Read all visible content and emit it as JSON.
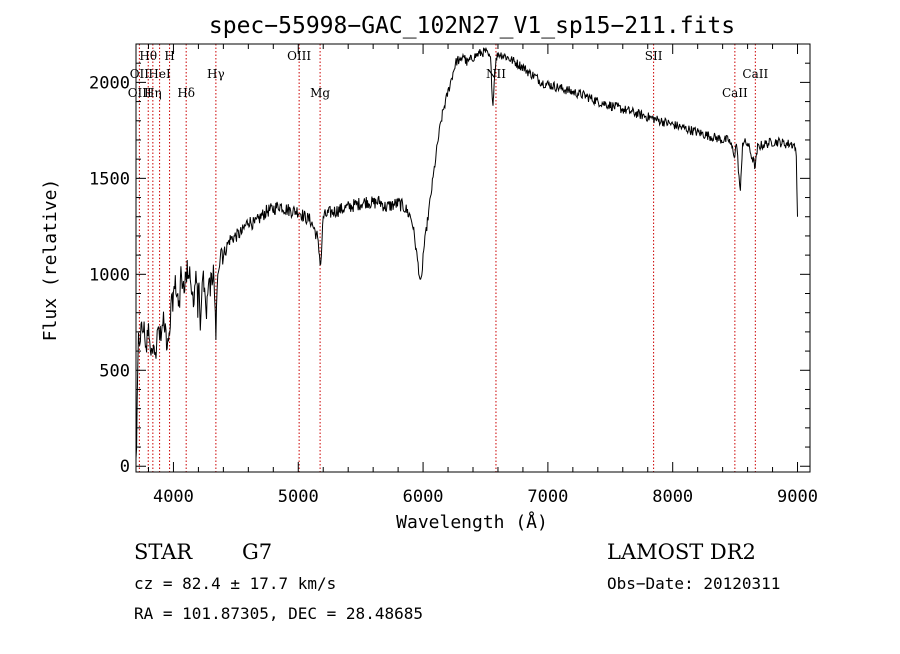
{
  "chart_data": {
    "type": "line",
    "title": "spec−55998−GAC_102N27_V1_sp15−211.fits",
    "xlabel": "Wavelength (Å)",
    "ylabel": "Flux (relative)",
    "xlim": [
      3700,
      9100
    ],
    "ylim": [
      -30,
      2200
    ],
    "xticks": [
      4000,
      5000,
      6000,
      7000,
      8000,
      9000
    ],
    "yticks": [
      0,
      500,
      1000,
      1500,
      2000
    ],
    "grid": false,
    "series": [
      {
        "color": "#000000",
        "x": [
          3700,
          3720,
          3740,
          3760,
          3780,
          3800,
          3820,
          3840,
          3860,
          3880,
          3900,
          3920,
          3940,
          3960,
          3980,
          4000,
          4020,
          4040,
          4060,
          4080,
          4100,
          4120,
          4140,
          4160,
          4180,
          4200,
          4220,
          4240,
          4260,
          4280,
          4300,
          4320,
          4340,
          4360,
          4380,
          4400,
          4450,
          4500,
          4550,
          4600,
          4650,
          4700,
          4750,
          4800,
          4850,
          4900,
          4950,
          5000,
          5050,
          5100,
          5150,
          5180,
          5200,
          5250,
          5300,
          5350,
          5400,
          5450,
          5500,
          5550,
          5600,
          5650,
          5700,
          5750,
          5800,
          5850,
          5900,
          5920,
          5950,
          5970,
          5980,
          5990,
          6000,
          6020,
          6040,
          6060,
          6080,
          6100,
          6120,
          6140,
          6160,
          6180,
          6200,
          6220,
          6240,
          6260,
          6280,
          6300,
          6320,
          6350,
          6400,
          6450,
          6500,
          6540,
          6560,
          6565,
          6580,
          6600,
          6650,
          6700,
          6750,
          6800,
          6850,
          6900,
          6950,
          7000,
          7050,
          7100,
          7150,
          7200,
          7300,
          7400,
          7500,
          7600,
          7700,
          7800,
          7900,
          8000,
          8100,
          8200,
          8300,
          8400,
          8450,
          8498,
          8510,
          8542,
          8560,
          8600,
          8662,
          8680,
          8700,
          8750,
          8800,
          8850,
          8900,
          8950,
          8980,
          8990,
          9000
        ],
        "y": [
          20,
          650,
          700,
          720,
          650,
          700,
          550,
          700,
          600,
          720,
          650,
          780,
          700,
          600,
          800,
          900,
          950,
          850,
          1000,
          950,
          980,
          1050,
          900,
          880,
          1000,
          920,
          850,
          950,
          800,
          900,
          950,
          1000,
          700,
          1050,
          1150,
          1100,
          1180,
          1200,
          1220,
          1280,
          1260,
          1300,
          1330,
          1340,
          1360,
          1340,
          1330,
          1330,
          1300,
          1280,
          1200,
          1050,
          1300,
          1320,
          1330,
          1340,
          1350,
          1360,
          1370,
          1380,
          1370,
          1380,
          1350,
          1360,
          1370,
          1350,
          1300,
          1250,
          1100,
          1000,
          950,
          980,
          1100,
          1200,
          1300,
          1400,
          1500,
          1600,
          1700,
          1780,
          1850,
          1900,
          1950,
          2000,
          2050,
          2100,
          2120,
          2100,
          2150,
          2100,
          2130,
          2150,
          2160,
          2120,
          1880,
          1950,
          2100,
          2150,
          2140,
          2120,
          2100,
          2080,
          2050,
          2030,
          2000,
          1990,
          1980,
          1970,
          1960,
          1950,
          1930,
          1900,
          1880,
          1860,
          1840,
          1820,
          1800,
          1780,
          1760,
          1740,
          1720,
          1700,
          1700,
          1620,
          1690,
          1420,
          1690,
          1680,
          1560,
          1660,
          1670,
          1680,
          1690,
          1690,
          1680,
          1680,
          1670,
          1600,
          1300
        ],
        "noise_amp": 25
      }
    ],
    "annotations": [
      {
        "label": "Hθ",
        "x": 3798,
        "row": 0
      },
      {
        "label": "H",
        "x": 3969,
        "row": 0
      },
      {
        "label": "OIII",
        "x": 5007,
        "row": 0
      },
      {
        "label": "SII",
        "x": 7847,
        "row": 0
      },
      {
        "label": "OII",
        "x": 3727,
        "row": 1
      },
      {
        "label": "HeI",
        "x": 3889,
        "row": 1
      },
      {
        "label": "Hγ",
        "x": 4340,
        "row": 1
      },
      {
        "label": "NII",
        "x": 6584,
        "row": 1
      },
      {
        "label": "CaII",
        "x": 8662,
        "row": 1
      },
      {
        "label": "OIII",
        "x": 3730,
        "row": 2
      },
      {
        "label": "Hη",
        "x": 3835,
        "row": 2
      },
      {
        "label": "Hδ",
        "x": 4102,
        "row": 2
      },
      {
        "label": "Mg",
        "x": 5175,
        "row": 2
      },
      {
        "label": "CaII",
        "x": 8498,
        "row": 2
      }
    ],
    "marker_lines": [
      3727,
      3798,
      3835,
      3889,
      3969,
      4102,
      4340,
      5007,
      5175,
      6584,
      7847,
      8498,
      8662
    ],
    "marker_color": "#cc0000"
  },
  "info": {
    "class": "STAR",
    "subclass": "G7",
    "cz": "cz = 82.4 ± 17.7 km/s",
    "coords": "RA = 101.87305, DEC =  28.48685",
    "survey": "LAMOST DR2",
    "obs_date": "Obs−Date: 20120311"
  }
}
